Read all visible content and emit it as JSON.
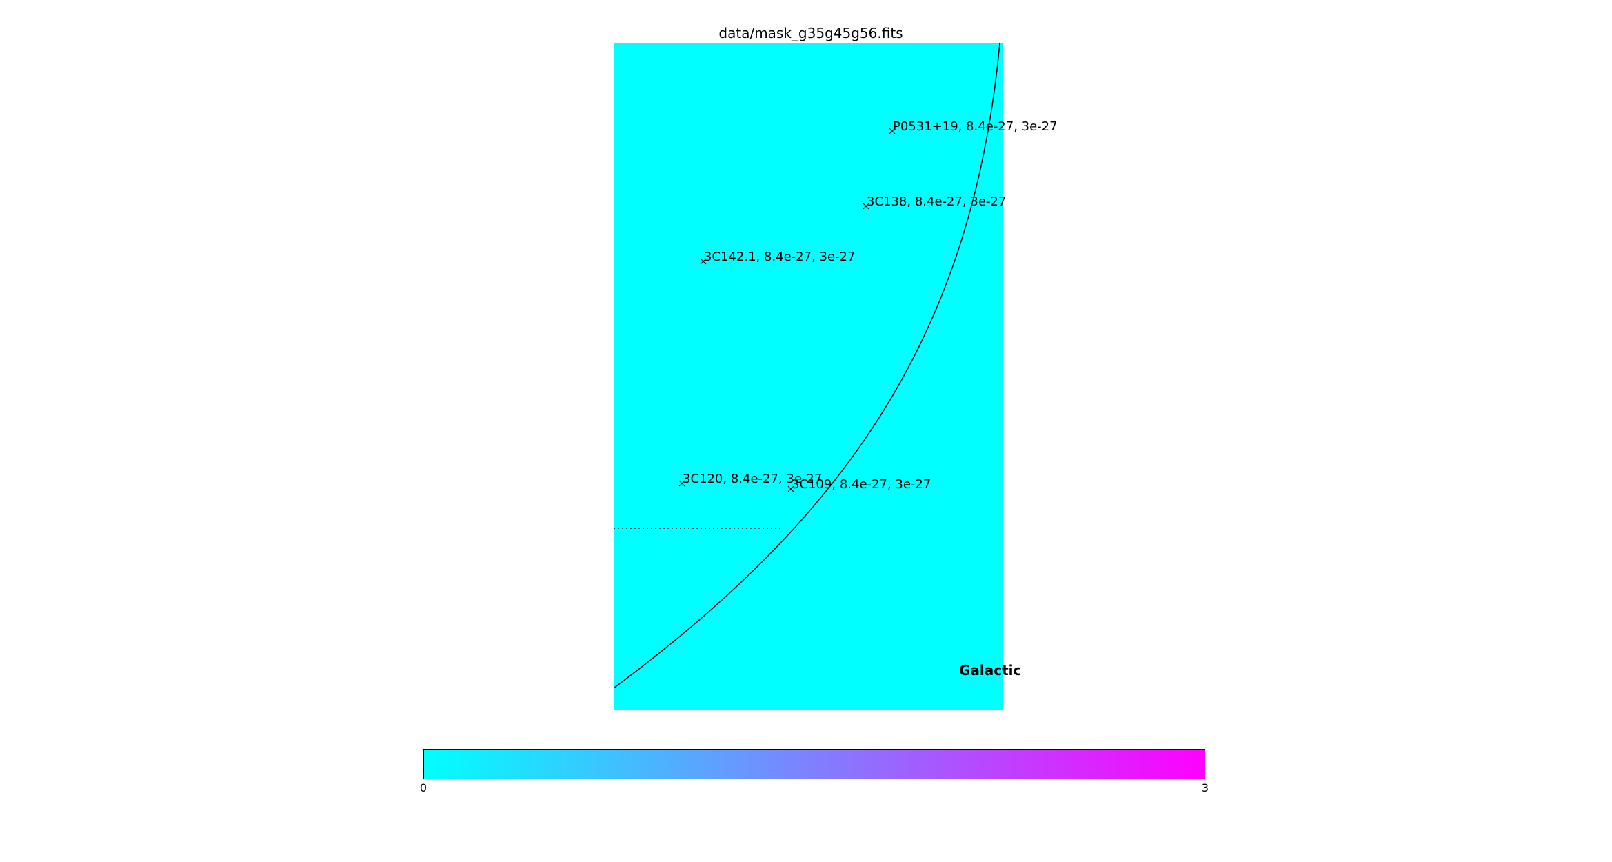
{
  "chart_data": {
    "type": "heatmap",
    "title": "data/mask_g35g45g56.fits",
    "frame_label": "Galactic",
    "colormap": "cool",
    "colors": {
      "low": "#00ffff",
      "high": "#ff00ff",
      "map_fill": "#00ffff"
    },
    "colorbar": {
      "min_label": "0",
      "max_label": "3",
      "range": [
        0,
        3
      ]
    },
    "mask_value": 0,
    "sources": [
      {
        "label": "P0531+19, 8.4e-27, 3e-27"
      },
      {
        "label": "3C138, 8.4e-27, 3e-27"
      },
      {
        "label": "3C142.1, 8.4e-27, 3e-27"
      },
      {
        "label": "3C120, 8.4e-27, 3e-27"
      },
      {
        "label": "3C109, 8.4e-27, 3e-27"
      }
    ],
    "grid": false
  }
}
